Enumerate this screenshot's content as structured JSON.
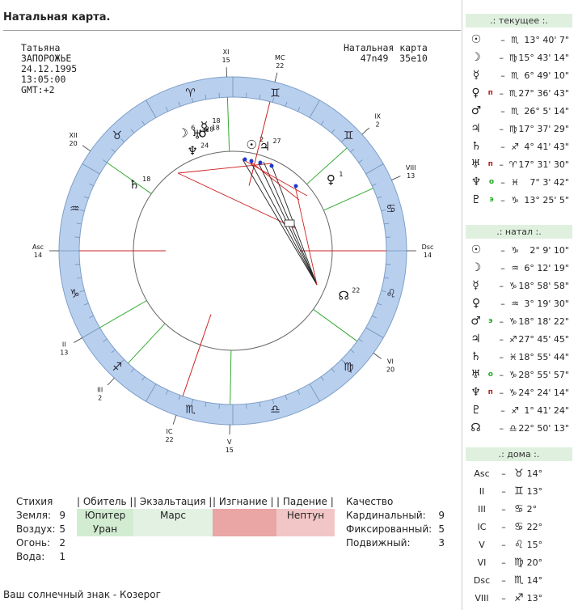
{
  "title": "Натальная карта.",
  "person": {
    "name": "Татьяна",
    "city": "ЗАПОРОЖЬЕ",
    "date": "24.12.1995",
    "time": "13:05:00",
    "gmt": "GMT:+2"
  },
  "natal_header": {
    "label": "Натальная карта",
    "coords": "47n49  35e10"
  },
  "colors": {
    "ring": "#b8d0ee",
    "red_line": "#cc2222",
    "green_line": "#33aa33",
    "panel_head": "#dff0df",
    "ruler_green": "#d2ecd2",
    "light_green": "#e3f1e3",
    "red_cell": "#eaa5a5",
    "pink_cell": "#f2c6c6"
  },
  "houses": [
    {
      "label": "XI",
      "deg": "15"
    },
    {
      "label": "MC",
      "deg": "22"
    },
    {
      "label": "IX",
      "deg": "2"
    },
    {
      "label": "VIII",
      "deg": "13"
    },
    {
      "label": "Dsc",
      "deg": "14"
    },
    {
      "label": "VI",
      "deg": "20"
    },
    {
      "label": "V",
      "deg": "15"
    },
    {
      "label": "IC",
      "deg": "22"
    },
    {
      "label": "III",
      "deg": "2"
    },
    {
      "label": "II",
      "deg": "13"
    },
    {
      "label": "Asc",
      "deg": "14"
    },
    {
      "label": "XII",
      "deg": "20"
    }
  ],
  "zodiac_ring": [
    "♊",
    "♈",
    "♉",
    "♒",
    "♑",
    "♐",
    "♏",
    "♎",
    "♍",
    "♌",
    "♋",
    "♊"
  ],
  "chart_planets": [
    {
      "glyph": "☽",
      "deg": "6"
    },
    {
      "glyph": "☿",
      "deg": "18"
    },
    {
      "glyph": "♆",
      "deg": "24"
    },
    {
      "glyph": "♅",
      "deg": "28"
    },
    {
      "glyph": "♂",
      "deg": "18"
    },
    {
      "glyph": "☉",
      "deg": "2"
    },
    {
      "glyph": "♃",
      "deg": "27"
    },
    {
      "glyph": "♀",
      "deg": "1"
    },
    {
      "glyph": "♄",
      "deg": "18"
    },
    {
      "glyph": "☊",
      "deg": "22"
    }
  ],
  "current": {
    "header": ".: текущее :.",
    "rows": [
      {
        "glyph": "☉",
        "mark": "",
        "sign": "♏",
        "val": "13° 40' 7\""
      },
      {
        "glyph": "☽",
        "mark": "",
        "sign": "♍",
        "val": "15° 43' 14\""
      },
      {
        "glyph": "☿",
        "mark": "",
        "sign": "♏",
        "val": "6° 49' 10\""
      },
      {
        "glyph": "♀",
        "mark": "п",
        "sign": "♏",
        "val": "27° 36' 43\""
      },
      {
        "glyph": "♂",
        "mark": "",
        "sign": "♏",
        "val": "26° 5' 14\""
      },
      {
        "glyph": "♃",
        "mark": "",
        "sign": "♍",
        "val": "17° 37' 29\""
      },
      {
        "glyph": "♄",
        "mark": "",
        "sign": "♐",
        "val": "4° 41' 43\""
      },
      {
        "glyph": "♅",
        "mark": "п",
        "sign": "♈",
        "val": "17° 31' 30\""
      },
      {
        "glyph": "♆",
        "mark": "о",
        "sign": "♓",
        "val": "7° 3' 42\""
      },
      {
        "glyph": "♇",
        "mark": "э",
        "sign": "♑",
        "val": "13° 25' 5\""
      }
    ]
  },
  "natal": {
    "header": ".: натал :.",
    "rows": [
      {
        "glyph": "☉",
        "mark": "",
        "sign": "♑",
        "val": "2° 9' 10\""
      },
      {
        "glyph": "☽",
        "mark": "",
        "sign": "♒",
        "val": "6° 12' 19\""
      },
      {
        "glyph": "☿",
        "mark": "",
        "sign": "♑",
        "val": "18° 58' 58\""
      },
      {
        "glyph": "♀",
        "mark": "",
        "sign": "♒",
        "val": "3° 19' 30\""
      },
      {
        "glyph": "♂",
        "mark": "э",
        "sign": "♑",
        "val": "18° 18' 22\""
      },
      {
        "glyph": "♃",
        "mark": "",
        "sign": "♐",
        "val": "27° 45' 45\""
      },
      {
        "glyph": "♄",
        "mark": "",
        "sign": "♓",
        "val": "18° 55' 44\""
      },
      {
        "glyph": "♅",
        "mark": "о",
        "sign": "♑",
        "val": "28° 55' 57\""
      },
      {
        "glyph": "♆",
        "mark": "п",
        "sign": "♑",
        "val": "24° 24' 14\""
      },
      {
        "glyph": "♇",
        "mark": "",
        "sign": "♐",
        "val": "1° 41' 24\""
      },
      {
        "glyph": "☊",
        "mark": "",
        "sign": "♎",
        "val": "22° 50' 13\""
      }
    ]
  },
  "houses_panel": {
    "header": ".: дома :.",
    "rows": [
      {
        "label": "Asc",
        "sign": "♉",
        "deg": "14°"
      },
      {
        "label": "II",
        "sign": "♊",
        "deg": "13°"
      },
      {
        "label": "III",
        "sign": "♋",
        "deg": "2°"
      },
      {
        "label": "IC",
        "sign": "♋",
        "deg": "22°"
      },
      {
        "label": "V",
        "sign": "♌",
        "deg": "15°"
      },
      {
        "label": "VI",
        "sign": "♍",
        "deg": "20°"
      },
      {
        "label": "Dsc",
        "sign": "♏",
        "deg": "14°"
      },
      {
        "label": "VIII",
        "sign": "♐",
        "deg": "13°"
      }
    ]
  },
  "elements": {
    "header": "Стихия",
    "rows": [
      {
        "label": "Земля:",
        "n": "9"
      },
      {
        "label": "Воздух:",
        "n": "5"
      },
      {
        "label": "Огонь:",
        "n": "2"
      },
      {
        "label": "Вода:",
        "n": "1"
      }
    ]
  },
  "dignities": {
    "headers": [
      "| Обитель |",
      "| Экзальтация |",
      "| Изгнание |",
      "| Падение |"
    ],
    "col1": [
      "Юпитер",
      "Уран"
    ],
    "col2": [
      "Марс"
    ],
    "col3": [],
    "col4": [
      "Нептун"
    ]
  },
  "quality": {
    "header": "Качество",
    "rows": [
      {
        "label": "Кардинальный:",
        "n": "9"
      },
      {
        "label": "Фиксированный:",
        "n": "5"
      },
      {
        "label": "Подвижный:",
        "n": "3"
      }
    ]
  },
  "sun_sign": "Ваш солнечный знак - Козерог"
}
